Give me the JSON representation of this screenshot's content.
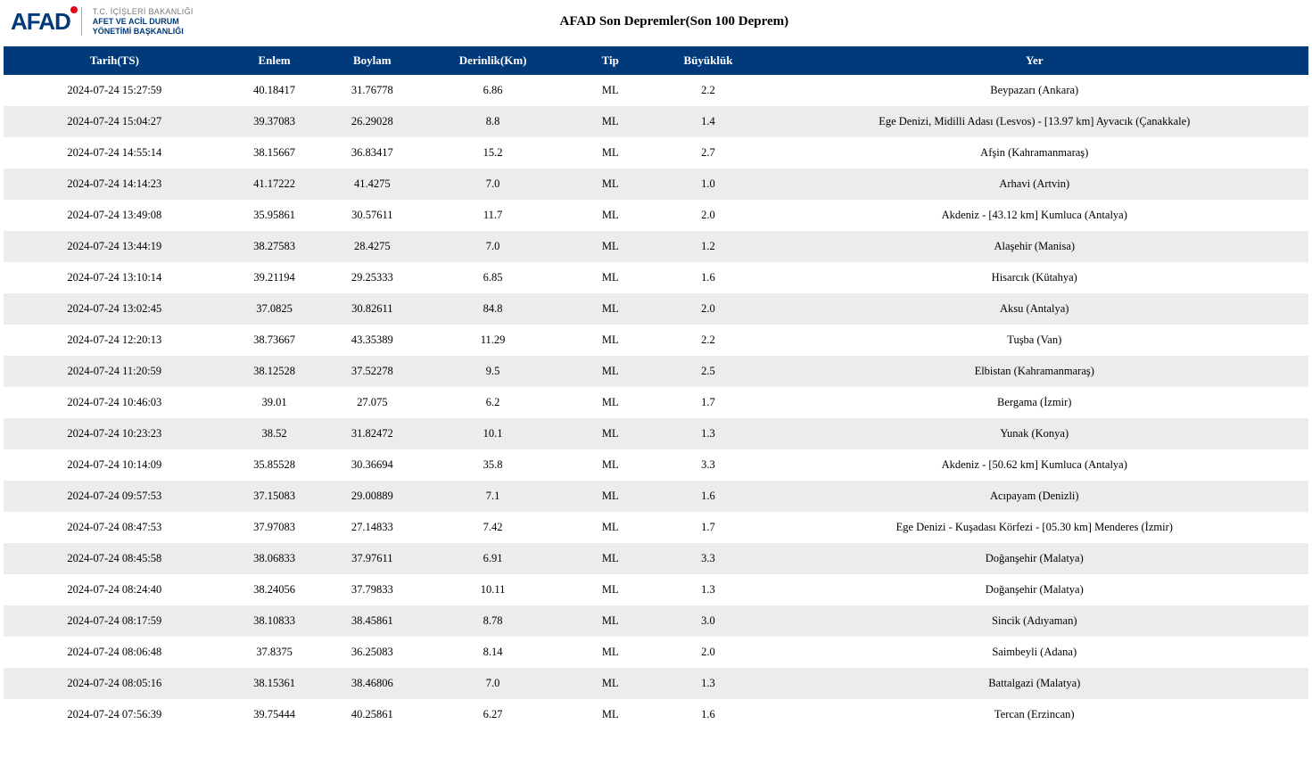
{
  "brand": {
    "name": "AFAD",
    "tagline_line1": "T.C. İÇİŞLERİ BAKANLIĞI",
    "tagline_line2": "AFET VE ACİL DURUM",
    "tagline_line3": "YÖNETİMİ BAŞKANLIĞI",
    "primary_color": "#003a7a",
    "accent_color": "#e30613"
  },
  "page": {
    "title": "AFAD Son Depremler(Son 100 Deprem)"
  },
  "table": {
    "header_bg": "#003a7a",
    "header_fg": "#ffffff",
    "row_alt_bg": "#ececec",
    "columns": [
      {
        "key": "date",
        "label": "Tarih(TS)"
      },
      {
        "key": "lat",
        "label": "Enlem"
      },
      {
        "key": "lon",
        "label": "Boylam"
      },
      {
        "key": "depth",
        "label": "Derinlik(Km)"
      },
      {
        "key": "type",
        "label": "Tip"
      },
      {
        "key": "mag",
        "label": "Büyüklük"
      },
      {
        "key": "loc",
        "label": "Yer"
      }
    ],
    "rows": [
      {
        "date": "2024-07-24 15:27:59",
        "lat": "40.18417",
        "lon": "31.76778",
        "depth": "6.86",
        "type": "ML",
        "mag": "2.2",
        "loc": "Beypazarı (Ankara)"
      },
      {
        "date": "2024-07-24 15:04:27",
        "lat": "39.37083",
        "lon": "26.29028",
        "depth": "8.8",
        "type": "ML",
        "mag": "1.4",
        "loc": "Ege Denizi, Midilli Adası (Lesvos) - [13.97 km] Ayvacık (Çanakkale)"
      },
      {
        "date": "2024-07-24 14:55:14",
        "lat": "38.15667",
        "lon": "36.83417",
        "depth": "15.2",
        "type": "ML",
        "mag": "2.7",
        "loc": "Afşin (Kahramanmaraş)"
      },
      {
        "date": "2024-07-24 14:14:23",
        "lat": "41.17222",
        "lon": "41.4275",
        "depth": "7.0",
        "type": "ML",
        "mag": "1.0",
        "loc": "Arhavi (Artvin)"
      },
      {
        "date": "2024-07-24 13:49:08",
        "lat": "35.95861",
        "lon": "30.57611",
        "depth": "11.7",
        "type": "ML",
        "mag": "2.0",
        "loc": "Akdeniz - [43.12 km] Kumluca (Antalya)"
      },
      {
        "date": "2024-07-24 13:44:19",
        "lat": "38.27583",
        "lon": "28.4275",
        "depth": "7.0",
        "type": "ML",
        "mag": "1.2",
        "loc": "Alaşehir (Manisa)"
      },
      {
        "date": "2024-07-24 13:10:14",
        "lat": "39.21194",
        "lon": "29.25333",
        "depth": "6.85",
        "type": "ML",
        "mag": "1.6",
        "loc": "Hisarcık (Kütahya)"
      },
      {
        "date": "2024-07-24 13:02:45",
        "lat": "37.0825",
        "lon": "30.82611",
        "depth": "84.8",
        "type": "ML",
        "mag": "2.0",
        "loc": "Aksu (Antalya)"
      },
      {
        "date": "2024-07-24 12:20:13",
        "lat": "38.73667",
        "lon": "43.35389",
        "depth": "11.29",
        "type": "ML",
        "mag": "2.2",
        "loc": "Tuşba (Van)"
      },
      {
        "date": "2024-07-24 11:20:59",
        "lat": "38.12528",
        "lon": "37.52278",
        "depth": "9.5",
        "type": "ML",
        "mag": "2.5",
        "loc": "Elbistan (Kahramanmaraş)"
      },
      {
        "date": "2024-07-24 10:46:03",
        "lat": "39.01",
        "lon": "27.075",
        "depth": "6.2",
        "type": "ML",
        "mag": "1.7",
        "loc": "Bergama (İzmir)"
      },
      {
        "date": "2024-07-24 10:23:23",
        "lat": "38.52",
        "lon": "31.82472",
        "depth": "10.1",
        "type": "ML",
        "mag": "1.3",
        "loc": "Yunak (Konya)"
      },
      {
        "date": "2024-07-24 10:14:09",
        "lat": "35.85528",
        "lon": "30.36694",
        "depth": "35.8",
        "type": "ML",
        "mag": "3.3",
        "loc": "Akdeniz - [50.62 km] Kumluca (Antalya)"
      },
      {
        "date": "2024-07-24 09:57:53",
        "lat": "37.15083",
        "lon": "29.00889",
        "depth": "7.1",
        "type": "ML",
        "mag": "1.6",
        "loc": "Acıpayam (Denizli)"
      },
      {
        "date": "2024-07-24 08:47:53",
        "lat": "37.97083",
        "lon": "27.14833",
        "depth": "7.42",
        "type": "ML",
        "mag": "1.7",
        "loc": "Ege Denizi - Kuşadası Körfezi - [05.30 km] Menderes (İzmir)"
      },
      {
        "date": "2024-07-24 08:45:58",
        "lat": "38.06833",
        "lon": "37.97611",
        "depth": "6.91",
        "type": "ML",
        "mag": "3.3",
        "loc": "Doğanşehir (Malatya)"
      },
      {
        "date": "2024-07-24 08:24:40",
        "lat": "38.24056",
        "lon": "37.79833",
        "depth": "10.11",
        "type": "ML",
        "mag": "1.3",
        "loc": "Doğanşehir (Malatya)"
      },
      {
        "date": "2024-07-24 08:17:59",
        "lat": "38.10833",
        "lon": "38.45861",
        "depth": "8.78",
        "type": "ML",
        "mag": "3.0",
        "loc": "Sincik (Adıyaman)"
      },
      {
        "date": "2024-07-24 08:06:48",
        "lat": "37.8375",
        "lon": "36.25083",
        "depth": "8.14",
        "type": "ML",
        "mag": "2.0",
        "loc": "Saimbeyli (Adana)"
      },
      {
        "date": "2024-07-24 08:05:16",
        "lat": "38.15361",
        "lon": "38.46806",
        "depth": "7.0",
        "type": "ML",
        "mag": "1.3",
        "loc": "Battalgazi (Malatya)"
      },
      {
        "date": "2024-07-24 07:56:39",
        "lat": "39.75444",
        "lon": "40.25861",
        "depth": "6.27",
        "type": "ML",
        "mag": "1.6",
        "loc": "Tercan (Erzincan)"
      }
    ]
  }
}
